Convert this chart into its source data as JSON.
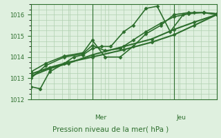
{
  "title": "Pression niveau de la mer( hPa )",
  "background_color": "#dff0df",
  "plot_bg_color": "#dff0df",
  "grid_color": "#b0d0b0",
  "line_color": "#2d6e2d",
  "text_color": "#2d6e2d",
  "ylim": [
    1012,
    1016.5
  ],
  "yticks": [
    1012,
    1013,
    1014,
    1015,
    1016
  ],
  "day_lines": [
    0.33,
    0.77
  ],
  "day_labels": [
    "Mer",
    "Jeu"
  ],
  "series": [
    {
      "x": [
        0.0,
        0.05,
        0.1,
        0.18,
        0.23,
        0.28,
        0.33,
        0.38,
        0.43,
        0.5,
        0.55,
        0.62,
        0.68,
        0.75,
        0.82,
        0.88,
        0.93,
        1.0
      ],
      "y": [
        1012.6,
        1012.5,
        1013.3,
        1013.7,
        1014.0,
        1014.1,
        1014.4,
        1014.5,
        1014.5,
        1015.2,
        1015.5,
        1016.3,
        1016.4,
        1015.2,
        1016.0,
        1016.1,
        1016.1,
        1016.05
      ],
      "marker": "D",
      "ms": 2.5,
      "lw": 1.2
    },
    {
      "x": [
        0.0,
        0.08,
        0.18,
        0.28,
        0.33,
        0.4,
        0.48,
        0.55,
        0.62,
        0.7,
        0.77,
        0.85,
        0.93,
        1.0
      ],
      "y": [
        1013.3,
        1013.7,
        1014.05,
        1014.2,
        1014.8,
        1014.0,
        1014.0,
        1014.5,
        1015.1,
        1015.5,
        1016.0,
        1016.1,
        1016.1,
        1016.0
      ],
      "marker": "D",
      "ms": 2.5,
      "lw": 1.2
    },
    {
      "x": [
        0.0,
        0.08,
        0.18,
        0.28,
        0.33,
        0.4,
        0.48,
        0.55,
        0.62,
        0.7,
        0.77,
        0.85,
        0.93,
        1.0
      ],
      "y": [
        1013.0,
        1013.6,
        1014.0,
        1014.15,
        1014.55,
        1014.3,
        1014.4,
        1014.8,
        1015.2,
        1015.6,
        1015.9,
        1016.05,
        1016.1,
        1016.05
      ],
      "marker": "D",
      "ms": 2.5,
      "lw": 1.2
    },
    {
      "x": [
        0.0,
        0.1,
        0.2,
        0.33,
        0.5,
        0.65,
        0.77,
        0.88,
        1.0
      ],
      "y": [
        1013.2,
        1013.5,
        1013.75,
        1014.0,
        1014.35,
        1014.7,
        1015.05,
        1015.5,
        1016.0
      ],
      "marker": "D",
      "ms": 2.5,
      "lw": 1.5
    },
    {
      "x": [
        0.0,
        0.1,
        0.2,
        0.33,
        0.5,
        0.65,
        0.77,
        0.88,
        1.0
      ],
      "y": [
        1013.1,
        1013.45,
        1013.7,
        1014.1,
        1014.5,
        1014.85,
        1015.3,
        1015.65,
        1016.0
      ],
      "marker": "D",
      "ms": 2.5,
      "lw": 1.5
    }
  ]
}
